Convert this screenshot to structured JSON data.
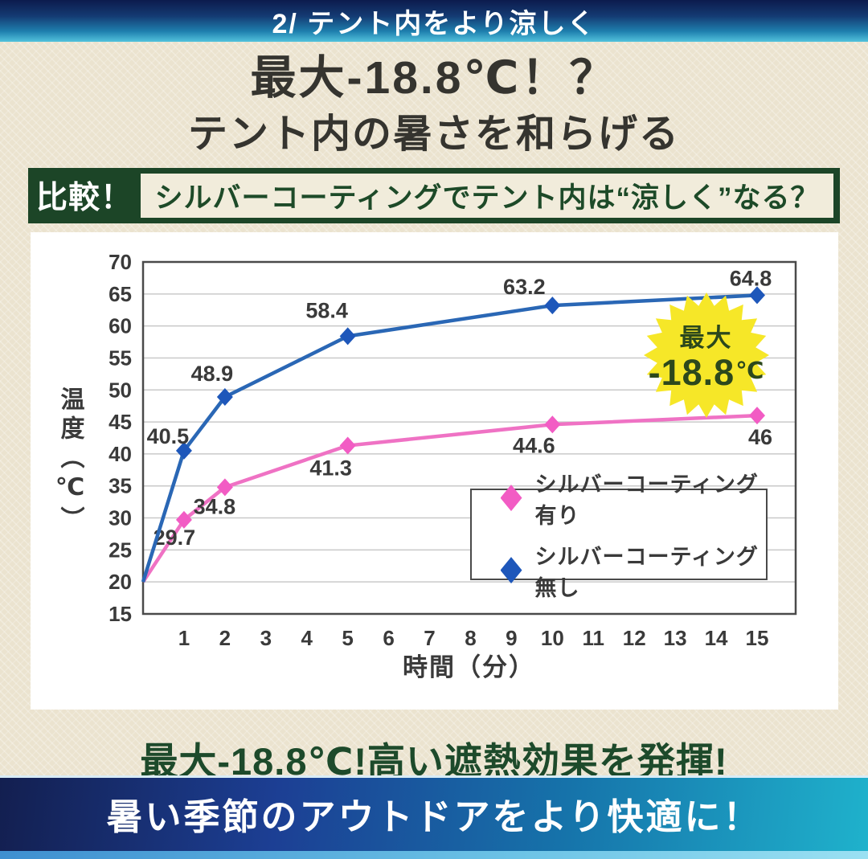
{
  "top_banner": {
    "text": "2/ テント内をより涼しく"
  },
  "headline": {
    "title": "最大-18.8℃！？",
    "subtitle": "テント内の暑さを和らげる"
  },
  "comparison": {
    "badge": "比較！",
    "question": "シルバーコーティングでテント内は“涼しく”なる？"
  },
  "chart_data": {
    "type": "line",
    "xlabel": "時間（分）",
    "ylabel": "温度（℃）",
    "ylim": [
      15,
      70
    ],
    "yticks": [
      15,
      20,
      25,
      30,
      35,
      40,
      45,
      50,
      55,
      60,
      65,
      70
    ],
    "xticks": [
      1,
      2,
      3,
      4,
      5,
      6,
      7,
      8,
      9,
      10,
      11,
      12,
      13,
      14,
      15
    ],
    "grid": true,
    "legend_position": "inside-right",
    "series": [
      {
        "name": "シルバーコーティング有り",
        "color": "#f25cc4",
        "line_color": "#ef72c4",
        "x": [
          0,
          1,
          2,
          5,
          10,
          15
        ],
        "y": [
          20,
          29.7,
          34.8,
          41.3,
          44.6,
          46
        ],
        "labels": [
          {
            "text": "29.7",
            "x": 1,
            "y": 29.7,
            "dx": -12,
            "dy": 22
          },
          {
            "text": "34.8",
            "x": 2,
            "y": 34.8,
            "dx": -13,
            "dy": 24
          },
          {
            "text": "41.3",
            "x": 5,
            "y": 41.3,
            "dx": -21,
            "dy": 28
          },
          {
            "text": "44.6",
            "x": 10,
            "y": 44.6,
            "dx": -23,
            "dy": 26
          },
          {
            "text": "46",
            "x": 15,
            "y": 46,
            "dx": 4,
            "dy": 27
          }
        ]
      },
      {
        "name": "シルバーコーティング無し",
        "color": "#1e57ba",
        "line_color": "#2a67b5",
        "x": [
          0,
          1,
          2,
          5,
          10,
          15
        ],
        "y": [
          20,
          40.5,
          48.9,
          58.4,
          63.2,
          64.8
        ],
        "labels": [
          {
            "text": "40.5",
            "x": 1,
            "y": 40.5,
            "dx": -20,
            "dy": -18
          },
          {
            "text": "48.9",
            "x": 2,
            "y": 48.9,
            "dx": -16,
            "dy": -29
          },
          {
            "text": "58.4",
            "x": 5,
            "y": 58.4,
            "dx": -26,
            "dy": -32
          },
          {
            "text": "63.2",
            "x": 10,
            "y": 63.2,
            "dx": -35,
            "dy": -23
          },
          {
            "text": "64.8",
            "x": 15,
            "y": 64.8,
            "dx": -8,
            "dy": -21
          }
        ]
      }
    ]
  },
  "badge": {
    "label": "最大",
    "value": "-18.8",
    "unit": "℃",
    "bg": "#f6e728",
    "text_color": "#2c481c"
  },
  "highlight": {
    "text": "最大-18.8℃!高い遮熱効果を発揮!"
  },
  "bottom_banner": {
    "text": "暑い季節のアウトドアをより快適に！"
  }
}
